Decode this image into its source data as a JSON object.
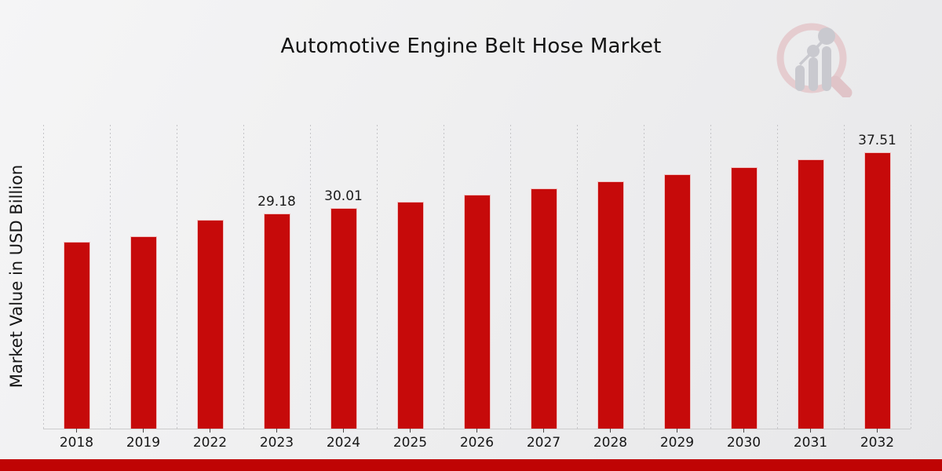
{
  "chart_data": {
    "type": "bar",
    "title": "Automotive Engine Belt Hose Market",
    "xlabel": "",
    "ylabel": "Market Value in USD Billion",
    "categories": [
      "2018",
      "2019",
      "2022",
      "2023",
      "2024",
      "2025",
      "2026",
      "2027",
      "2028",
      "2029",
      "2030",
      "2031",
      "2032"
    ],
    "values": [
      25.4,
      26.15,
      28.35,
      29.18,
      30.01,
      30.86,
      31.74,
      32.65,
      33.58,
      34.53,
      35.52,
      36.53,
      37.51
    ],
    "value_labels": {
      "2023": "29.18",
      "2024": "30.01",
      "2032": "37.51"
    },
    "ylim": [
      0,
      41.26
    ],
    "grid": "vertical-dashed",
    "legend": "none",
    "bar_color": "#c60a0a"
  },
  "icons": {
    "brand_logo": "magnifier-bar-chart-logo"
  },
  "colors": {
    "bar_red": "#c60a0a",
    "bottom_band_red": "#bf0404",
    "gridline_gray": "#c5c5c8",
    "text_dark": "#161616",
    "logo_pink": "#e5cccf",
    "logo_gray": "#c9c9cf"
  }
}
